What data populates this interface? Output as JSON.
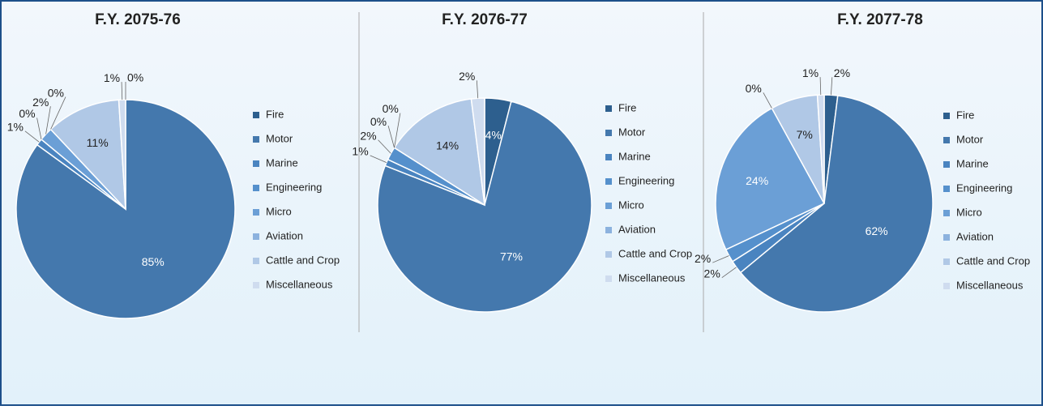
{
  "chart_data": [
    {
      "type": "pie",
      "title": "F.Y. 2075-76",
      "categories": [
        "Fire",
        "Motor",
        "Marine",
        "Engineering",
        "Micro",
        "Aviation",
        "Cattle and Crop",
        "Miscellaneous"
      ],
      "values": [
        0,
        85,
        1,
        0,
        2,
        0,
        11,
        1
      ],
      "value_labels": [
        "0%",
        "85%",
        "1%",
        "0%",
        "2%",
        "0%",
        "11%",
        "1%"
      ],
      "colors": [
        "#2d5f8e",
        "#4478ad",
        "#4a84c0",
        "#5590cc",
        "#6b9fd6",
        "#8cb2de",
        "#b0c8e6",
        "#cfdcef"
      ]
    },
    {
      "type": "pie",
      "title": "F.Y. 2076-77",
      "categories": [
        "Fire",
        "Motor",
        "Marine",
        "Engineering",
        "Micro",
        "Aviation",
        "Cattle and Crop",
        "Miscellaneous"
      ],
      "values": [
        4,
        77,
        1,
        2,
        0,
        0,
        14,
        2
      ],
      "value_labels": [
        "4%",
        "77%",
        "1%",
        "2%",
        "0%",
        "0%",
        "14%",
        "2%"
      ],
      "colors": [
        "#2d5f8e",
        "#4478ad",
        "#4a84c0",
        "#5590cc",
        "#6b9fd6",
        "#8cb2de",
        "#b0c8e6",
        "#cfdcef"
      ]
    },
    {
      "type": "pie",
      "title": "F.Y. 2077-78",
      "categories": [
        "Fire",
        "Motor",
        "Marine",
        "Engineering",
        "Micro",
        "Aviation",
        "Cattle and Crop",
        "Miscellaneous"
      ],
      "values": [
        2,
        62,
        2,
        2,
        24,
        0,
        7,
        1
      ],
      "value_labels": [
        "2%",
        "62%",
        "2%",
        "2%",
        "24%",
        "0%",
        "7%",
        "1%"
      ],
      "colors": [
        "#2d5f8e",
        "#4478ad",
        "#4a84c0",
        "#5590cc",
        "#6b9fd6",
        "#8cb2de",
        "#b0c8e6",
        "#cfdcef"
      ]
    }
  ]
}
